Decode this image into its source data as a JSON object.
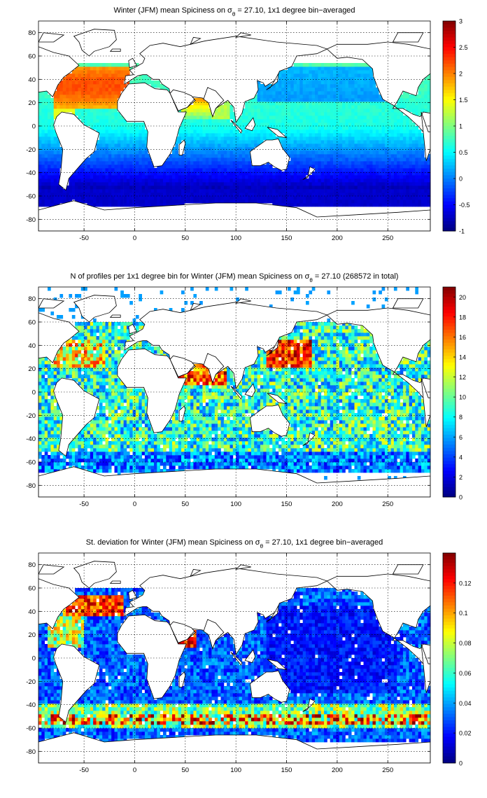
{
  "chart_data": [
    {
      "type": "heatmap",
      "title": "Winter (JFM) mean Spiciness on σ",
      "title_sub": "θ",
      "title_tail": " = 27.10, 1x1 degree bin−averaged",
      "xlim": [
        -95,
        292
      ],
      "ylim": [
        -90,
        90
      ],
      "xticks": [
        -50,
        0,
        50,
        100,
        150,
        200,
        250
      ],
      "yticks": [
        80,
        60,
        40,
        20,
        0,
        -20,
        -40,
        -60,
        -80
      ],
      "colorbar": {
        "min": -1,
        "max": 3,
        "ticks": [
          "3",
          "2.5",
          "2",
          "1.5",
          "1",
          "0.5",
          "0",
          "-0.5",
          "-1"
        ]
      },
      "field": "spiciness",
      "grid": true
    },
    {
      "type": "heatmap",
      "title": "N of profiles per 1x1 degree bin for Winter (JFM) mean Spiciness on σ",
      "title_sub": "θ",
      "title_tail": " = 27.10 (268572 in total)",
      "xlim": [
        -95,
        292
      ],
      "ylim": [
        -90,
        90
      ],
      "xticks": [
        -50,
        0,
        50,
        100,
        150,
        200,
        250
      ],
      "yticks": [
        80,
        60,
        40,
        20,
        0,
        -20,
        -40,
        -60,
        -80
      ],
      "colorbar": {
        "min": 0,
        "max": 21,
        "ticks": [
          "20",
          "18",
          "16",
          "14",
          "12",
          "10",
          "8",
          "6",
          "4",
          "2",
          "0"
        ]
      },
      "field": "count",
      "grid": true
    },
    {
      "type": "heatmap",
      "title": "St. deviation for Winter (JFM) mean Spiciness on σ",
      "title_sub": "θ",
      "title_tail": " = 27.10, 1x1 degree bin−averaged",
      "xlim": [
        -95,
        292
      ],
      "ylim": [
        -90,
        90
      ],
      "xticks": [
        -50,
        0,
        50,
        100,
        150,
        200,
        250
      ],
      "yticks": [
        80,
        60,
        40,
        20,
        0,
        -20,
        -40,
        -60,
        -80
      ],
      "colorbar": {
        "min": 0,
        "max": 0.14,
        "ticks": [
          "0.12",
          "0.1",
          "0.08",
          "0.06",
          "0.04",
          "0.02",
          "0"
        ]
      },
      "field": "stdev",
      "grid": true
    }
  ]
}
